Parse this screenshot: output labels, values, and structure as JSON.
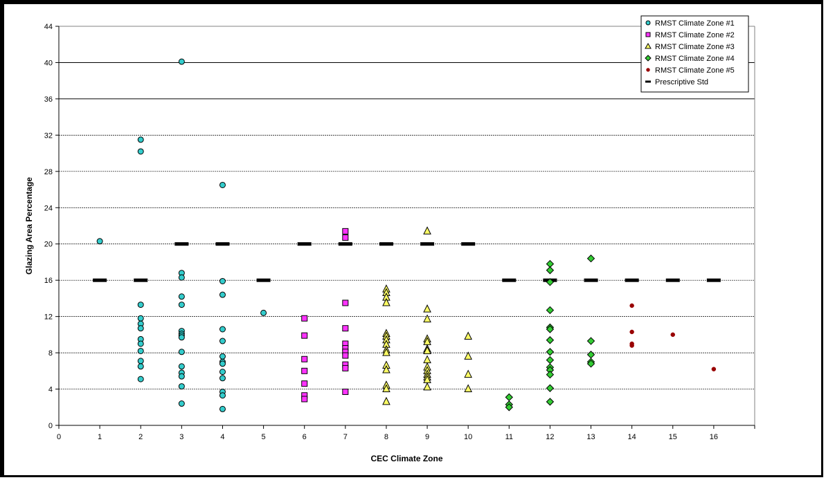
{
  "chart_data": {
    "type": "scatter",
    "title": "",
    "xlabel": "CEC Climate Zone",
    "ylabel": "Glazing Area Percentage",
    "xlim": [
      0,
      17
    ],
    "ylim": [
      0,
      44
    ],
    "x_ticks": [
      "0",
      "1",
      "2",
      "3",
      "4",
      "5",
      "6",
      "7",
      "8",
      "9",
      "10",
      "11",
      "12",
      "13",
      "14",
      "15",
      "16"
    ],
    "y_ticks": [
      "0",
      "4",
      "8",
      "12",
      "16",
      "20",
      "24",
      "28",
      "32",
      "36",
      "40",
      "44"
    ],
    "grid": "horizontal dashed; solid at 36 and 40",
    "legend_position": "top-right",
    "series": [
      {
        "name": "RMST Climate Zone #1",
        "marker": "circle",
        "color": "#33CCCC",
        "points": [
          [
            1,
            20.3
          ],
          [
            2,
            31.5
          ],
          [
            2,
            30.2
          ],
          [
            2,
            13.3
          ],
          [
            2,
            11.8
          ],
          [
            2,
            11.2
          ],
          [
            2,
            10.7
          ],
          [
            2,
            9.5
          ],
          [
            2,
            9.0
          ],
          [
            2,
            8.2
          ],
          [
            2,
            7.1
          ],
          [
            2,
            6.5
          ],
          [
            2,
            5.1
          ],
          [
            3,
            40.1
          ],
          [
            3,
            16.8
          ],
          [
            3,
            16.3
          ],
          [
            3,
            14.2
          ],
          [
            3,
            13.3
          ],
          [
            3,
            10.4
          ],
          [
            3,
            10.1
          ],
          [
            3,
            9.9
          ],
          [
            3,
            9.7
          ],
          [
            3,
            8.1
          ],
          [
            3,
            6.5
          ],
          [
            3,
            5.8
          ],
          [
            3,
            5.4
          ],
          [
            3,
            4.3
          ],
          [
            3,
            2.4
          ],
          [
            4,
            26.5
          ],
          [
            4,
            15.9
          ],
          [
            4,
            14.4
          ],
          [
            4,
            10.6
          ],
          [
            4,
            9.3
          ],
          [
            4,
            7.6
          ],
          [
            4,
            7.0
          ],
          [
            4,
            6.8
          ],
          [
            4,
            5.9
          ],
          [
            4,
            5.2
          ],
          [
            4,
            3.7
          ],
          [
            4,
            3.3
          ],
          [
            4,
            1.8
          ],
          [
            5,
            12.4
          ]
        ]
      },
      {
        "name": "RMST Climate Zone #2",
        "marker": "square",
        "color": "#FF33FF",
        "points": [
          [
            6,
            11.8
          ],
          [
            6,
            9.9
          ],
          [
            6,
            7.3
          ],
          [
            6,
            6.0
          ],
          [
            6,
            4.6
          ],
          [
            6,
            3.3
          ],
          [
            6,
            2.9
          ],
          [
            7,
            21.4
          ],
          [
            7,
            20.7
          ],
          [
            7,
            13.5
          ],
          [
            7,
            10.7
          ],
          [
            7,
            9.0
          ],
          [
            7,
            8.5
          ],
          [
            7,
            8.1
          ],
          [
            7,
            7.7
          ],
          [
            7,
            6.7
          ],
          [
            7,
            6.3
          ],
          [
            7,
            3.7
          ]
        ]
      },
      {
        "name": "RMST Climate Zone #3",
        "marker": "triangle",
        "color": "#FFFF66",
        "points": [
          [
            8,
            15.0
          ],
          [
            8,
            14.6
          ],
          [
            8,
            14.1
          ],
          [
            8,
            13.5
          ],
          [
            8,
            10.1
          ],
          [
            8,
            9.8
          ],
          [
            8,
            9.4
          ],
          [
            8,
            8.9
          ],
          [
            8,
            8.3
          ],
          [
            8,
            8.0
          ],
          [
            8,
            6.6
          ],
          [
            8,
            6.1
          ],
          [
            8,
            4.4
          ],
          [
            8,
            4.0
          ],
          [
            8,
            2.6
          ],
          [
            9,
            21.4
          ],
          [
            9,
            12.8
          ],
          [
            9,
            11.7
          ],
          [
            9,
            9.5
          ],
          [
            9,
            9.2
          ],
          [
            9,
            8.4
          ],
          [
            9,
            8.2
          ],
          [
            9,
            7.2
          ],
          [
            9,
            6.4
          ],
          [
            9,
            6.0
          ],
          [
            9,
            5.6
          ],
          [
            9,
            5.3
          ],
          [
            9,
            5.0
          ],
          [
            9,
            4.2
          ],
          [
            10,
            9.8
          ],
          [
            10,
            7.6
          ],
          [
            10,
            5.6
          ],
          [
            10,
            4.0
          ]
        ]
      },
      {
        "name": "RMST Climate Zone #4",
        "marker": "diamond",
        "color": "#33CC33",
        "points": [
          [
            11,
            3.1
          ],
          [
            11,
            2.3
          ],
          [
            11,
            2.0
          ],
          [
            12,
            17.8
          ],
          [
            12,
            17.1
          ],
          [
            12,
            15.8
          ],
          [
            12,
            12.7
          ],
          [
            12,
            10.8
          ],
          [
            12,
            10.6
          ],
          [
            12,
            9.4
          ],
          [
            12,
            8.1
          ],
          [
            12,
            7.2
          ],
          [
            12,
            6.4
          ],
          [
            12,
            6.1
          ],
          [
            12,
            5.6
          ],
          [
            12,
            4.1
          ],
          [
            12,
            2.6
          ],
          [
            13,
            18.4
          ],
          [
            13,
            9.3
          ],
          [
            13,
            7.8
          ],
          [
            13,
            7.0
          ],
          [
            13,
            6.8
          ]
        ]
      },
      {
        "name": "RMST Climate Zone #5",
        "marker": "circle-small",
        "color": "#990000",
        "points": [
          [
            14,
            13.2
          ],
          [
            14,
            10.3
          ],
          [
            14,
            9.0
          ],
          [
            14,
            8.8
          ],
          [
            15,
            10.0
          ],
          [
            16,
            6.2
          ]
        ]
      },
      {
        "name": "Prescriptive Std",
        "marker": "dash",
        "color": "#000000",
        "points": [
          [
            1,
            16
          ],
          [
            2,
            16
          ],
          [
            3,
            20
          ],
          [
            4,
            20
          ],
          [
            5,
            16
          ],
          [
            6,
            20
          ],
          [
            7,
            20
          ],
          [
            8,
            20
          ],
          [
            9,
            20
          ],
          [
            10,
            20
          ],
          [
            11,
            16
          ],
          [
            12,
            16
          ],
          [
            13,
            16
          ],
          [
            14,
            16
          ],
          [
            15,
            16
          ],
          [
            16,
            16
          ]
        ]
      }
    ]
  }
}
